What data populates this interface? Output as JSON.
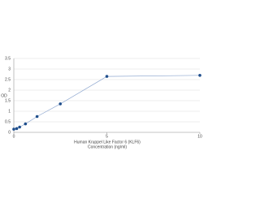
{
  "chart_data": {
    "type": "scatter",
    "xlabel": [
      "Human Kruppel Like Factor 6 (KLF6)",
      "Concentration (ng/ml)"
    ],
    "ylabel": "OD",
    "x": [
      0,
      0.156,
      0.312,
      0.625,
      1.25,
      2.5,
      5,
      10
    ],
    "series": [
      {
        "color": "#1f4e8c",
        "line_color": "#8fa8d0",
        "values": [
          0.15,
          0.18,
          0.25,
          0.4,
          0.75,
          1.35,
          2.65,
          2.7
        ]
      }
    ],
    "xlim": [
      0,
      10
    ],
    "xticks": [
      0,
      5,
      10
    ],
    "ylim": [
      0,
      3.5
    ],
    "yticks": [
      0,
      0.5,
      1,
      1.5,
      2,
      2.5,
      3,
      3.5
    ],
    "grid": true
  }
}
